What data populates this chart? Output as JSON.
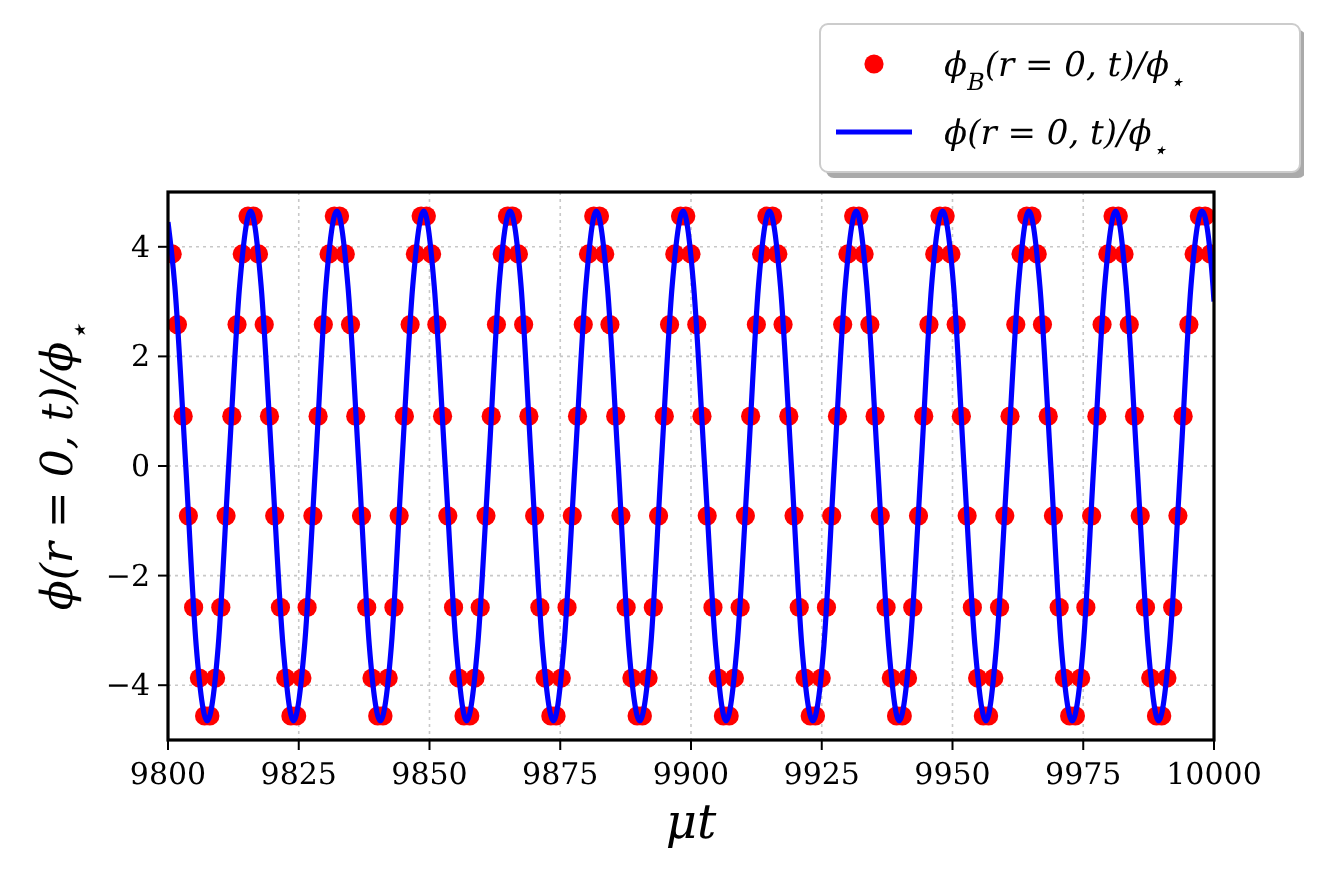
{
  "chart_data": {
    "type": "scatter",
    "xlabel": "μt",
    "ylabel": "ϕ(r = 0, t)/ϕ$_{⋆}$",
    "xlim": [
      9800,
      10000
    ],
    "ylim": [
      -5,
      5
    ],
    "xticks": [
      9800,
      9825,
      9850,
      9875,
      9900,
      9925,
      9950,
      9975,
      10000
    ],
    "yticks": [
      {
        "value": -4,
        "label": "−4"
      },
      {
        "value": -2,
        "label": "−2"
      },
      0,
      2,
      4
    ],
    "grid": true,
    "legend": "top right",
    "series": [
      {
        "name": "ϕ$_{B}$(r = 0, t)/ϕ$_{⋆}$",
        "marker": "circle",
        "color": "#ff0000",
        "x": [
          9800.8,
          9801.8,
          9802.9,
          9803.9,
          9804.9,
          9806.0,
          9807.0,
          9808.0,
          9809.1,
          9810.1,
          9811.1,
          9812.2,
          9813.2,
          9814.2,
          9815.3,
          9816.3,
          9817.3,
          9818.4,
          9819.4,
          9820.4,
          9821.5,
          9822.5,
          9823.5,
          9824.6,
          9825.6,
          9826.6,
          9827.7,
          9828.7,
          9829.7,
          9830.8,
          9831.8,
          9832.8,
          9833.9,
          9834.9,
          9835.9,
          9837.0,
          9838.0,
          9839.0,
          9840.1,
          9841.1,
          9842.1,
          9843.2,
          9844.2,
          9845.2,
          9846.3,
          9847.3,
          9848.4,
          9849.4,
          9850.4,
          9851.4,
          9852.5,
          9853.5,
          9854.6,
          9855.6,
          9856.6,
          9857.7,
          9858.7,
          9859.7,
          9860.8,
          9861.8,
          9862.8,
          9863.9,
          9864.9,
          9865.9,
          9867.0,
          9868.0,
          9869.0,
          9870.1,
          9871.1,
          9872.1,
          9873.2,
          9874.2,
          9875.2,
          9876.3,
          9877.3,
          9878.3,
          9879.4,
          9880.4,
          9881.4,
          9882.5,
          9883.5,
          9884.5,
          9885.6,
          9886.6,
          9887.6,
          9888.7,
          9889.7,
          9890.7,
          9891.8,
          9892.8,
          9893.8,
          9894.9,
          9895.9,
          9896.9,
          9898.0,
          9899.0,
          9900.0,
          9901.1,
          9902.1,
          9903.1,
          9904.2,
          9905.2,
          9906.2,
          9907.3,
          9908.3,
          9909.4,
          9910.4,
          9911.4,
          9912.5,
          9913.5,
          9914.5,
          9915.6,
          9916.6,
          9917.6,
          9918.7,
          9919.7,
          9920.7,
          9921.8,
          9922.8,
          9923.8,
          9924.9,
          9925.9,
          9926.9,
          9928.0,
          9929.0,
          9930.0,
          9931.1,
          9932.1,
          9933.1,
          9934.2,
          9935.2,
          9936.2,
          9937.3,
          9938.3,
          9939.3,
          9940.4,
          9941.4,
          9942.4,
          9943.5,
          9944.5,
          9945.5,
          9946.6,
          9947.6,
          9948.6,
          9949.7,
          9950.7,
          9951.7,
          9952.8,
          9953.8,
          9954.8,
          9955.9,
          9956.9,
          9957.9,
          9959.0,
          9960.0,
          9961.0,
          9962.1,
          9963.1,
          9964.2,
          9965.2,
          9966.2,
          9967.2,
          9968.3,
          9969.3,
          9970.4,
          9971.4,
          9972.4,
          9973.5,
          9974.5,
          9975.5,
          9976.6,
          9977.6,
          9978.6,
          9979.7,
          9980.7,
          9981.7,
          9982.8,
          9983.8,
          9984.8,
          9985.9,
          9986.9,
          9987.9,
          9989.0,
          9990.0,
          9991.0,
          9992.1,
          9993.1,
          9994.1,
          9995.2,
          9996.2,
          9997.2,
          9998.3,
          9999.3
        ],
        "values": [
          3.87,
          2.58,
          0.91,
          -0.91,
          -2.58,
          -3.87,
          -4.56,
          -4.56,
          -3.87,
          -2.58,
          -0.91,
          0.91,
          2.58,
          3.87,
          4.56,
          4.56,
          3.87,
          2.58,
          0.91,
          -0.91,
          -2.58,
          -3.87,
          -4.56,
          -4.56,
          -3.87,
          -2.58,
          -0.91,
          0.91,
          2.58,
          3.87,
          4.56,
          4.56,
          3.87,
          2.58,
          0.91,
          -0.91,
          -2.58,
          -3.87,
          -4.56,
          -4.56,
          -3.87,
          -2.58,
          -0.91,
          0.91,
          2.58,
          3.87,
          4.56,
          4.56,
          3.87,
          2.58,
          0.91,
          -0.91,
          -2.58,
          -3.87,
          -4.56,
          -4.56,
          -3.87,
          -2.58,
          -0.91,
          0.91,
          2.58,
          3.87,
          4.56,
          4.56,
          3.87,
          2.58,
          0.91,
          -0.91,
          -2.58,
          -3.87,
          -4.56,
          -4.56,
          -3.87,
          -2.58,
          -0.91,
          0.91,
          2.58,
          3.87,
          4.56,
          4.56,
          3.87,
          2.58,
          0.91,
          -0.91,
          -2.58,
          -3.87,
          -4.56,
          -4.56,
          -3.87,
          -2.58,
          -0.91,
          0.91,
          2.58,
          3.87,
          4.56,
          4.56,
          3.87,
          2.58,
          0.91,
          -0.91,
          -2.58,
          -3.87,
          -4.56,
          -4.56,
          -3.87,
          -2.58,
          -0.91,
          0.91,
          2.58,
          3.87,
          4.56,
          4.56,
          3.87,
          2.58,
          0.91,
          -0.91,
          -2.58,
          -3.87,
          -4.56,
          -4.56,
          -3.87,
          -2.58,
          -0.91,
          0.91,
          2.58,
          3.87,
          4.56,
          4.56,
          3.87,
          2.58,
          0.91,
          -0.91,
          -2.58,
          -3.87,
          -4.56,
          -4.56,
          -3.87,
          -2.58,
          -0.91,
          0.91,
          2.58,
          3.87,
          4.56,
          4.56,
          3.87,
          2.58,
          0.91,
          -0.91,
          -2.58,
          -3.87,
          -4.56,
          -4.56,
          -3.87,
          -2.58,
          -0.91,
          0.91,
          2.58,
          3.87,
          4.56,
          4.56,
          3.87,
          2.58,
          0.91,
          -0.91,
          -2.58,
          -3.87,
          -4.56,
          -4.56,
          -3.87,
          -2.58,
          -0.91,
          0.91,
          2.58,
          3.87,
          4.56,
          4.56,
          3.87,
          2.58,
          0.91,
          -0.91,
          -2.58,
          -3.87,
          -4.56,
          -4.56,
          -3.87,
          -2.58,
          -0.91,
          0.91,
          2.58,
          3.87,
          4.56,
          4.56,
          3.87
        ]
      },
      {
        "name": "ϕ(r = 0, t)/ϕ$_{⋆}$",
        "type": "line",
        "line_style": "solid",
        "color": "#0000ff",
        "x": [
          9800,
          9801.3,
          9803.4,
          9805.4,
          9807.5,
          9809.6,
          9811.6,
          9813.7,
          9815.8,
          9817.8,
          9819.9,
          9822.0,
          9824.0,
          9826.1,
          9828.2,
          9830.2,
          9832.3,
          9834.4,
          9836.5,
          9838.5,
          9840.6,
          9842.7,
          9844.7,
          9846.8,
          9848.9,
          9850.9,
          9853.0,
          9855.1,
          9857.1,
          9859.2,
          9861.3,
          9863.3,
          9865.4,
          9867.5,
          9869.5,
          9871.6,
          9873.7,
          9875.7,
          9877.8,
          9879.9,
          9881.9,
          9884.0,
          9886.1,
          9888.1,
          9890.2,
          9892.3,
          9894.3,
          9896.4,
          9898.5,
          9900.5,
          9902.6,
          9904.7,
          9906.7,
          9908.8,
          9910.9,
          9912.9,
          9915.0,
          9917.1,
          9919.2,
          9921.2,
          9923.3,
          9925.4,
          9927.4,
          9929.5,
          9931.6,
          9933.6,
          9935.7,
          9937.8,
          9939.8,
          9941.9,
          9944.0,
          9946.0,
          9948.1,
          9950.2,
          9952.2,
          9954.3,
          9956.4,
          9958.4,
          9960.5,
          9962.6,
          9964.6,
          9966.7,
          9968.8,
          9970.8,
          9972.9,
          9975.0,
          9977.0,
          9979.1,
          9981.2,
          9983.2,
          9985.3,
          9987.4,
          9989.4,
          9991.5,
          9993.6,
          9995.6,
          9997.7,
          9999.8,
          10000
        ],
        "values": [
          4.45,
          3.29,
          0,
          -3.29,
          -4.65,
          -3.29,
          0,
          3.29,
          4.65,
          3.29,
          0,
          -3.29,
          -4.65,
          -3.29,
          0,
          3.29,
          4.65,
          3.29,
          0,
          -3.29,
          -4.65,
          -3.29,
          0,
          3.29,
          4.65,
          3.29,
          0,
          -3.29,
          -4.65,
          -3.29,
          0,
          3.29,
          4.65,
          3.29,
          0,
          -3.29,
          -4.65,
          -3.29,
          0,
          3.29,
          4.65,
          3.29,
          0,
          -3.29,
          -4.65,
          -3.29,
          0,
          3.29,
          4.65,
          3.29,
          0,
          -3.29,
          -4.65,
          -3.29,
          0,
          3.29,
          4.65,
          3.29,
          0,
          -3.29,
          -4.65,
          -3.29,
          0,
          3.29,
          4.65,
          3.29,
          0,
          -3.29,
          -4.65,
          -3.29,
          0,
          3.29,
          4.65,
          3.29,
          0,
          -3.29,
          -4.65,
          -3.29,
          0,
          3.29,
          4.65,
          3.29,
          0,
          -3.29,
          -4.65,
          -3.29,
          0,
          3.29,
          4.65,
          3.29,
          0,
          -3.29,
          -4.65,
          -3.29,
          0,
          3.29,
          4.65,
          3.29,
          3.0
        ]
      }
    ]
  }
}
